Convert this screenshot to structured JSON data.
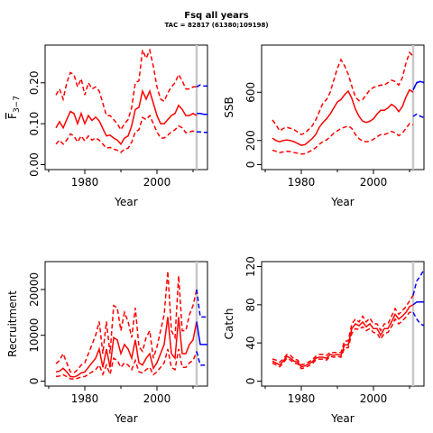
{
  "figure": {
    "title": "Fsq all years",
    "subtitle": "TAC = 82817 (61380;109198)"
  },
  "colors": {
    "history": "#ff0000",
    "forecast": "#0000ff",
    "marker": "#c8c8c8",
    "axis": "#000000"
  },
  "chart_data": [
    {
      "type": "line",
      "ylabel": "F̅3–7",
      "ylabel_main": "F",
      "ylabel_sub": "3−7",
      "xlabel": "Year",
      "xlim": [
        1969,
        2014
      ],
      "ylim": [
        0,
        0.28
      ],
      "xticks": [
        "1980",
        "2000"
      ],
      "yticks": [
        "0.00",
        "0.10",
        "0.20"
      ],
      "grid": false,
      "vline_year": 2011,
      "x": [
        1972,
        1973,
        1974,
        1975,
        1976,
        1977,
        1978,
        1979,
        1980,
        1981,
        1982,
        1983,
        1984,
        1985,
        1986,
        1987,
        1988,
        1989,
        1990,
        1991,
        1992,
        1993,
        1994,
        1995,
        1996,
        1997,
        1998,
        1999,
        2000,
        2001,
        2002,
        2003,
        2004,
        2005,
        2006,
        2007,
        2008,
        2009,
        2010,
        2011
      ],
      "series": [
        {
          "role": "median",
          "values": [
            0.09,
            0.105,
            0.09,
            0.11,
            0.13,
            0.125,
            0.1,
            0.125,
            0.1,
            0.12,
            0.108,
            0.116,
            0.107,
            0.088,
            0.07,
            0.072,
            0.065,
            0.06,
            0.05,
            0.065,
            0.07,
            0.095,
            0.135,
            0.14,
            0.18,
            0.16,
            0.18,
            0.15,
            0.12,
            0.1,
            0.1,
            0.11,
            0.12,
            0.125,
            0.145,
            0.135,
            0.12,
            0.12,
            0.125,
            0.12
          ]
        },
        {
          "role": "upper",
          "values": [
            0.17,
            0.185,
            0.16,
            0.2,
            0.225,
            0.22,
            0.19,
            0.21,
            0.17,
            0.2,
            0.185,
            0.19,
            0.18,
            0.15,
            0.12,
            0.12,
            0.11,
            0.1,
            0.085,
            0.1,
            0.11,
            0.14,
            0.2,
            0.205,
            0.28,
            0.26,
            0.28,
            0.24,
            0.19,
            0.16,
            0.155,
            0.175,
            0.19,
            0.2,
            0.22,
            0.205,
            0.185,
            0.185,
            0.19,
            0.19
          ]
        },
        {
          "role": "lower",
          "values": [
            0.05,
            0.06,
            0.05,
            0.06,
            0.075,
            0.07,
            0.055,
            0.07,
            0.058,
            0.07,
            0.06,
            0.065,
            0.06,
            0.05,
            0.04,
            0.042,
            0.038,
            0.035,
            0.03,
            0.038,
            0.04,
            0.055,
            0.08,
            0.085,
            0.115,
            0.11,
            0.12,
            0.1,
            0.08,
            0.065,
            0.065,
            0.072,
            0.08,
            0.085,
            0.095,
            0.09,
            0.078,
            0.08,
            0.082,
            0.08
          ]
        }
      ],
      "forecast": {
        "x": [
          2011,
          2012,
          2013,
          2014
        ],
        "median": [
          0.125,
          0.125,
          0.123,
          0.123
        ],
        "upper": [
          0.19,
          0.195,
          0.192,
          0.192
        ],
        "lower": [
          0.08,
          0.08,
          0.079,
          0.079
        ]
      }
    },
    {
      "type": "line",
      "ylabel": "SSB",
      "xlabel": "Year",
      "xlim": [
        1969,
        2014
      ],
      "ylim": [
        0,
        950
      ],
      "xticks": [
        "1980",
        "2000"
      ],
      "yticks": [
        "0",
        "200",
        "600"
      ],
      "grid": false,
      "vline_year": 2011,
      "x": [
        1972,
        1973,
        1974,
        1975,
        1976,
        1977,
        1978,
        1979,
        1980,
        1981,
        1982,
        1983,
        1984,
        1985,
        1986,
        1987,
        1988,
        1989,
        1990,
        1991,
        1992,
        1993,
        1994,
        1995,
        1996,
        1997,
        1998,
        1999,
        2000,
        2001,
        2002,
        2003,
        2004,
        2005,
        2006,
        2007,
        2008,
        2009,
        2010,
        2011
      ],
      "series": [
        {
          "role": "median",
          "values": [
            220,
            200,
            190,
            200,
            205,
            200,
            190,
            175,
            160,
            165,
            190,
            215,
            250,
            310,
            350,
            380,
            420,
            470,
            520,
            540,
            580,
            610,
            550,
            460,
            400,
            360,
            350,
            360,
            380,
            420,
            450,
            450,
            470,
            500,
            480,
            440,
            480,
            560,
            620,
            600
          ]
        },
        {
          "role": "upper",
          "values": [
            370,
            330,
            280,
            300,
            310,
            300,
            290,
            270,
            250,
            260,
            290,
            320,
            370,
            440,
            510,
            540,
            600,
            700,
            800,
            870,
            820,
            750,
            650,
            560,
            530,
            540,
            580,
            620,
            640,
            650,
            660,
            660,
            680,
            700,
            690,
            660,
            720,
            840,
            930,
            900
          ]
        },
        {
          "role": "lower",
          "values": [
            120,
            110,
            100,
            105,
            110,
            108,
            100,
            95,
            88,
            90,
            105,
            120,
            140,
            170,
            190,
            205,
            230,
            260,
            280,
            300,
            310,
            320,
            300,
            250,
            215,
            195,
            190,
            195,
            210,
            230,
            250,
            250,
            260,
            275,
            265,
            240,
            260,
            300,
            340,
            330
          ]
        }
      ],
      "forecast": {
        "x": [
          2011,
          2012,
          2013,
          2014
        ],
        "median": [
          620,
          680,
          690,
          680
        ],
        "upper": [
          620,
          680,
          690,
          680
        ],
        "lower": [
          400,
          420,
          400,
          390
        ]
      }
    },
    {
      "type": "line",
      "ylabel": "Recruitment",
      "xlabel": "Year",
      "xlim": [
        1969,
        2014
      ],
      "ylim": [
        0,
        25000
      ],
      "xticks": [
        "1980",
        "2000"
      ],
      "yticks": [
        "0",
        "10000",
        "20000"
      ],
      "grid": false,
      "vline_year": 2011,
      "x": [
        1972,
        1973,
        1974,
        1975,
        1976,
        1977,
        1978,
        1979,
        1980,
        1981,
        1982,
        1983,
        1984,
        1985,
        1986,
        1987,
        1988,
        1989,
        1990,
        1991,
        1992,
        1993,
        1994,
        1995,
        1996,
        1997,
        1998,
        1999,
        2000,
        2001,
        2002,
        2003,
        2004,
        2005,
        2006,
        2007,
        2008,
        2009,
        2010,
        2011
      ],
      "series": [
        {
          "role": "median",
          "values": [
            2000,
            2200,
            2800,
            2000,
            1000,
            900,
            1200,
            1800,
            2000,
            3000,
            4000,
            5000,
            7000,
            3000,
            7000,
            3000,
            9500,
            9000,
            6000,
            8000,
            7000,
            5000,
            9000,
            4000,
            3500,
            5000,
            6000,
            2800,
            4000,
            6000,
            8000,
            14000,
            6000,
            5000,
            14000,
            6000,
            6000,
            8000,
            9000,
            13000
          ]
        },
        {
          "role": "upper",
          "values": [
            3800,
            4500,
            6000,
            4000,
            2000,
            1800,
            2500,
            3500,
            4000,
            6000,
            8000,
            10000,
            13000,
            6000,
            13000,
            6000,
            16500,
            16000,
            11000,
            15000,
            13000,
            9500,
            16000,
            7500,
            6500,
            9500,
            11000,
            5000,
            7500,
            11000,
            14500,
            24000,
            11000,
            9500,
            23000,
            11000,
            11000,
            14500,
            16500,
            20000
          ]
        },
        {
          "role": "lower",
          "values": [
            1000,
            1100,
            1400,
            1000,
            500,
            450,
            600,
            900,
            1000,
            1500,
            2000,
            2500,
            3500,
            1500,
            3500,
            1500,
            5000,
            4500,
            3000,
            4000,
            3500,
            2500,
            4500,
            2000,
            1800,
            2500,
            3000,
            1400,
            2000,
            3000,
            4000,
            7000,
            3000,
            2500,
            7000,
            3000,
            3000,
            4000,
            4500,
            6500
          ]
        }
      ],
      "forecast": {
        "x": [
          2011,
          2012,
          2013,
          2014
        ],
        "median": [
          13000,
          8000,
          8000,
          8000
        ],
        "upper": [
          20000,
          14000,
          14000,
          14000
        ],
        "lower": [
          6500,
          3500,
          3500,
          3500
        ]
      }
    },
    {
      "type": "line",
      "ylabel": "Catch",
      "xlabel": "Year",
      "xlim": [
        1969,
        2014
      ],
      "ylim": [
        0,
        120
      ],
      "xticks": [
        "1980",
        "2000"
      ],
      "yticks": [
        "0",
        "40",
        "80",
        "120"
      ],
      "grid": false,
      "vline_year": 2011,
      "x": [
        1972,
        1973,
        1974,
        1975,
        1976,
        1977,
        1978,
        1979,
        1980,
        1981,
        1982,
        1983,
        1984,
        1985,
        1986,
        1987,
        1988,
        1989,
        1990,
        1991,
        1992,
        1993,
        1994,
        1995,
        1996,
        1997,
        1998,
        1999,
        2000,
        2001,
        2002,
        2003,
        2004,
        2005,
        2006,
        2007,
        2008,
        2009,
        2010,
        2011
      ],
      "series": [
        {
          "role": "median",
          "values": [
            21,
            19,
            17,
            21,
            26,
            24,
            21,
            20,
            15,
            16,
            18,
            20,
            24,
            25,
            25,
            24,
            28,
            27,
            28,
            27,
            38,
            38,
            55,
            60,
            58,
            62,
            57,
            60,
            55,
            55,
            48,
            55,
            55,
            62,
            70,
            65,
            68,
            72,
            78,
            80
          ]
        },
        {
          "role": "upper",
          "values": [
            23,
            22,
            20,
            23,
            28,
            27,
            23,
            22,
            17,
            18,
            20,
            22,
            26,
            28,
            28,
            27,
            30,
            30,
            30,
            30,
            42,
            42,
            60,
            65,
            62,
            68,
            62,
            66,
            60,
            60,
            53,
            60,
            60,
            68,
            76,
            70,
            74,
            78,
            84,
            90
          ]
        },
        {
          "role": "lower",
          "values": [
            19,
            17,
            15,
            19,
            24,
            22,
            19,
            18,
            13,
            14,
            16,
            18,
            22,
            23,
            23,
            22,
            26,
            25,
            26,
            25,
            35,
            35,
            50,
            55,
            54,
            57,
            53,
            55,
            51,
            50,
            44,
            50,
            51,
            57,
            65,
            60,
            63,
            67,
            72,
            72
          ]
        }
      ],
      "forecast": {
        "x": [
          2011,
          2012,
          2013,
          2014
        ],
        "median": [
          80,
          83,
          83,
          83
        ],
        "upper": [
          90,
          105,
          110,
          117
        ],
        "lower": [
          72,
          65,
          60,
          58
        ]
      }
    }
  ]
}
